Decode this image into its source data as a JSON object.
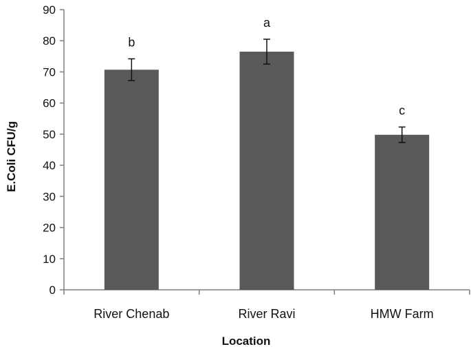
{
  "chart_data": {
    "type": "bar",
    "categories": [
      "River Chenab",
      "River Ravi",
      "HMW Farm"
    ],
    "values": [
      70.7,
      76.5,
      49.8
    ],
    "error": [
      3.5,
      4.0,
      2.5
    ],
    "significance_labels": [
      "b",
      "a",
      "c"
    ],
    "title": "",
    "xlabel": "Location",
    "ylabel": "E.Coli CFU/g",
    "ylim": [
      0,
      90
    ],
    "yticks": [
      0,
      10,
      20,
      30,
      40,
      50,
      60,
      70,
      80,
      90
    ],
    "grid": false,
    "bar_color": "#595959",
    "axis_color": "#7f7f7f"
  }
}
